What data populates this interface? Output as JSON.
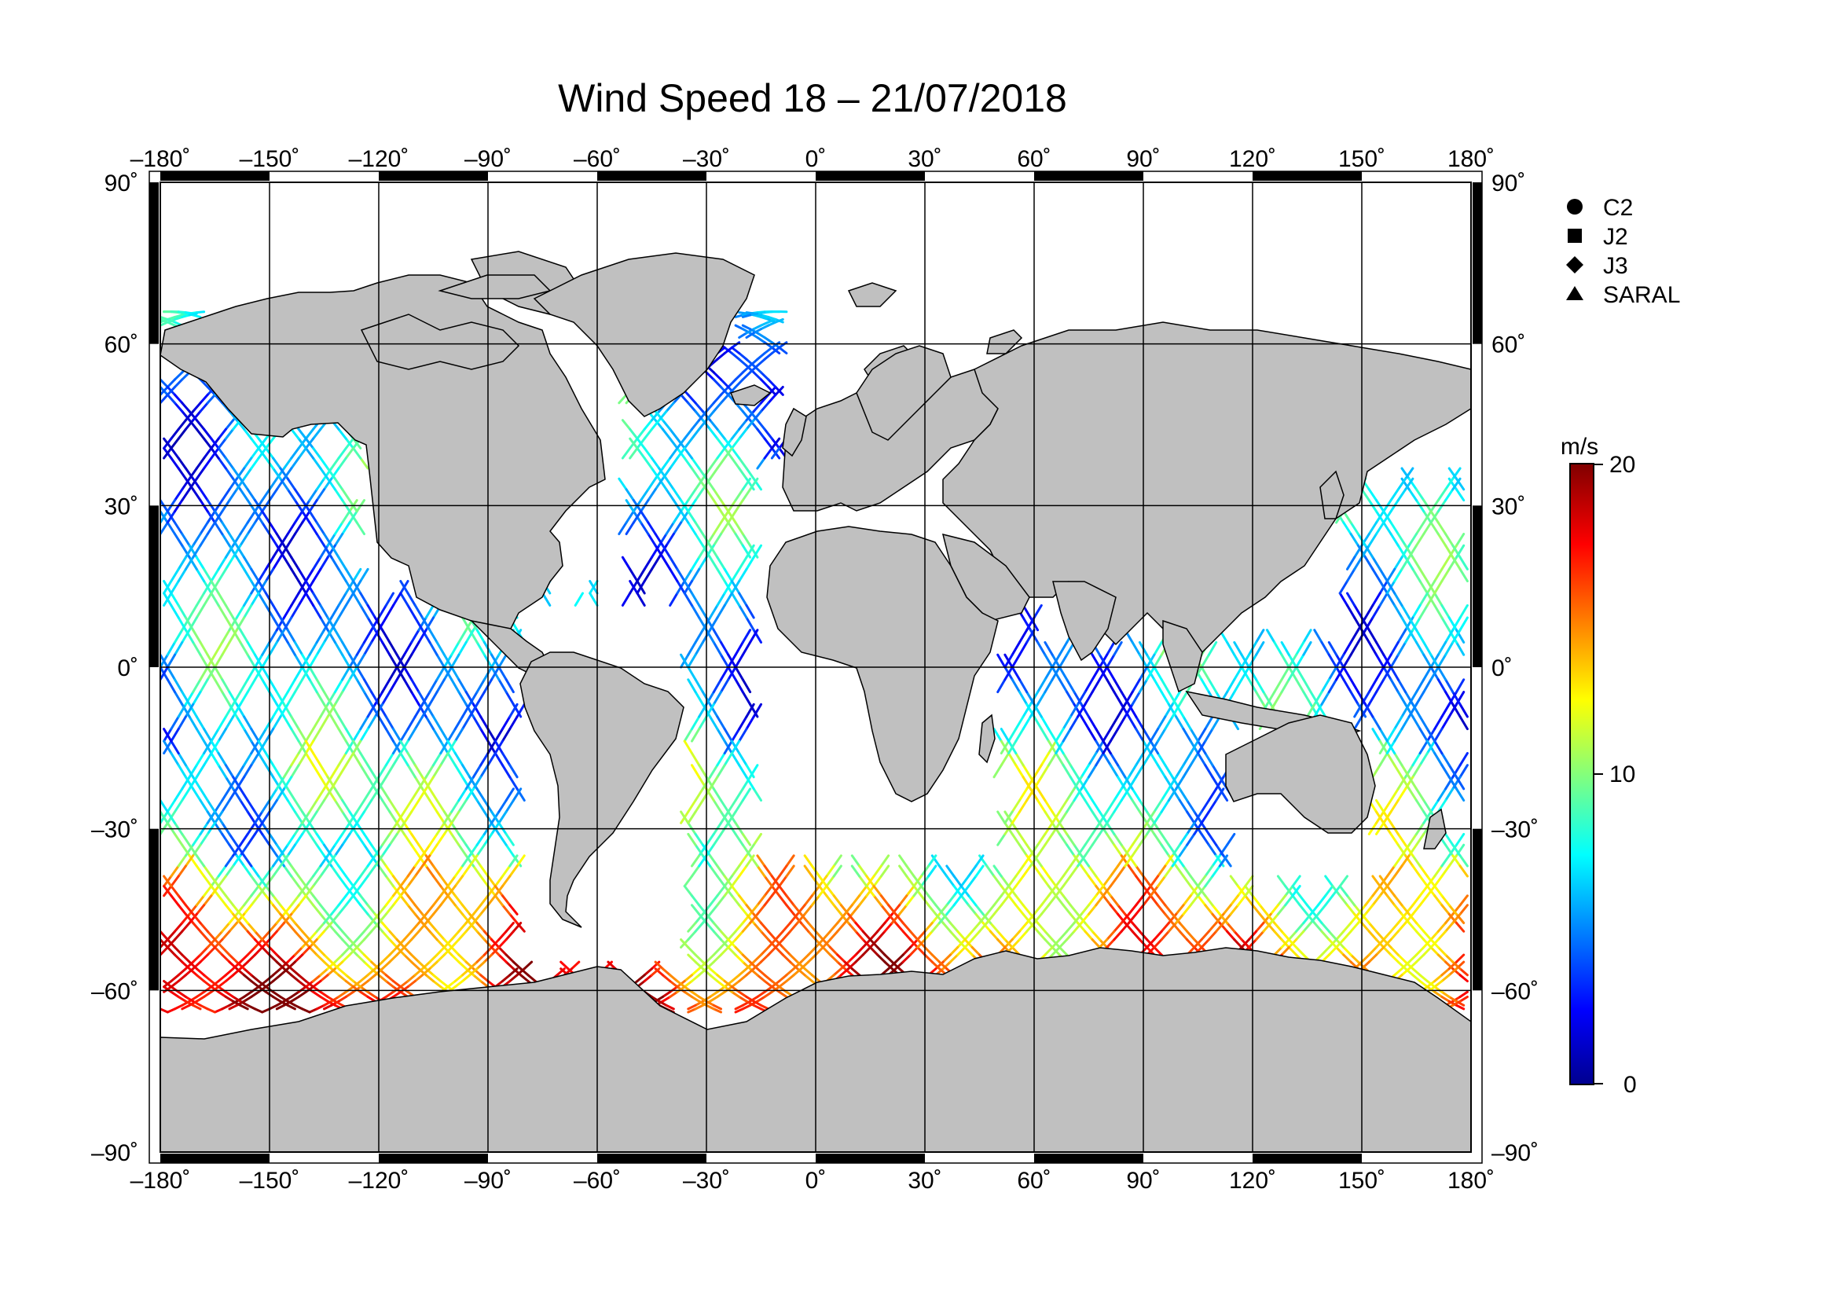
{
  "map": {
    "title": "Wind Speed 18 – 21/07/2018",
    "projection": "equirectangular",
    "lon_range": [
      -180,
      180
    ],
    "lat_range": [
      -90,
      90
    ],
    "lon_tick_labels": [
      {
        "value": -180,
        "label": "–180˚"
      },
      {
        "value": -150,
        "label": "–150˚"
      },
      {
        "value": -120,
        "label": "–120˚"
      },
      {
        "value": -90,
        "label": "–90˚"
      },
      {
        "value": -60,
        "label": "–60˚"
      },
      {
        "value": -30,
        "label": "–30˚"
      },
      {
        "value": 0,
        "label": "0˚"
      },
      {
        "value": 30,
        "label": "30˚"
      },
      {
        "value": 60,
        "label": "60˚"
      },
      {
        "value": 90,
        "label": "90˚"
      },
      {
        "value": 120,
        "label": "120˚"
      },
      {
        "value": 150,
        "label": "150˚"
      },
      {
        "value": 180,
        "label": "180˚"
      }
    ],
    "lat_tick_labels": [
      {
        "value": 90,
        "label": "90˚"
      },
      {
        "value": 60,
        "label": "60˚"
      },
      {
        "value": 30,
        "label": "30˚"
      },
      {
        "value": 0,
        "label": "0˚"
      },
      {
        "value": -30,
        "label": "–30˚"
      },
      {
        "value": -60,
        "label": "–60˚"
      },
      {
        "value": -90,
        "label": "–90˚"
      }
    ],
    "grid": true,
    "land_color": "#c0c0c0",
    "ocean_color": "#ffffff",
    "legend": {
      "placement": "right-top",
      "items": [
        {
          "label": "C2",
          "symbol": "circle"
        },
        {
          "label": "J2",
          "symbol": "square"
        },
        {
          "label": "J3",
          "symbol": "diamond"
        },
        {
          "label": "SARAL",
          "symbol": "triangle"
        }
      ]
    },
    "colorbar": {
      "unit": "m/s",
      "min": 0,
      "max": 20,
      "tick_labels": [
        {
          "value": 20,
          "label": "20"
        },
        {
          "value": 10,
          "label": "10"
        },
        {
          "value": 0,
          "label": "0"
        }
      ],
      "colormap": "jet",
      "stops": [
        "#00008f",
        "#0000ff",
        "#00ffff",
        "#ffff00",
        "#ff0000",
        "#800000"
      ]
    },
    "tracks": {
      "description_layer": "satellite ground tracks colored by wind speed",
      "orbit_family": [
        {
          "name": "ascending-descending",
          "inclination_deg": 66,
          "spacing_lon_deg": 13
        }
      ]
    }
  }
}
